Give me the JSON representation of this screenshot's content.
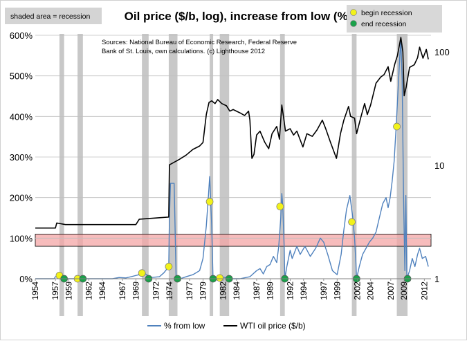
{
  "chart_data": {
    "type": "line",
    "title": "Oil price ($/b, log), increase from low (%)",
    "shaded_label": "shaded area = recession",
    "legend_markers": [
      {
        "label": "begin recession",
        "color": "#f2f21a"
      },
      {
        "label": "end recession",
        "color": "#1aa14a"
      }
    ],
    "source_note": [
      "Sources: National Bureau of Economic Research, Federal Reserve",
      "Bank of St. Louis, own calculations. (c) Lighthouse 2012"
    ],
    "x_ticks": [
      "1954",
      "1957",
      "1959",
      "1962",
      "1964",
      "1967",
      "1969",
      "1972",
      "1974",
      "1977",
      "1979",
      "1982",
      "1984",
      "1987",
      "1989",
      "1992",
      "1994",
      "1997",
      "1999",
      "2002",
      "2004",
      "2007",
      "2009",
      "2012"
    ],
    "x_range": [
      1954,
      2013
    ],
    "y_left": {
      "ticks": [
        "0%",
        "100%",
        "200%",
        "300%",
        "400%",
        "500%",
        "600%"
      ],
      "range": [
        0,
        600
      ]
    },
    "y_right": {
      "ticks": [
        "1",
        "10",
        "100"
      ],
      "range_log": [
        1,
        140
      ],
      "scale": "log"
    },
    "band": {
      "from": 80,
      "to": 110,
      "color": "#f4a6a6"
    },
    "recessions": [
      [
        1957.6,
        1958.3
      ],
      [
        1960.3,
        1961.1
      ],
      [
        1969.9,
        1970.9
      ],
      [
        1973.9,
        1975.2
      ],
      [
        1980.0,
        1980.5
      ],
      [
        1981.5,
        1982.9
      ],
      [
        1990.5,
        1991.2
      ],
      [
        2001.2,
        2001.9
      ],
      [
        2007.9,
        2009.5
      ]
    ],
    "begin_points": [
      {
        "x": 1957.6,
        "y": 8
      },
      {
        "x": 1960.3,
        "y": 0
      },
      {
        "x": 1969.9,
        "y": 14
      },
      {
        "x": 1973.9,
        "y": 30
      },
      {
        "x": 1980.0,
        "y": 190
      },
      {
        "x": 1981.5,
        "y": 2
      },
      {
        "x": 1990.5,
        "y": 178
      },
      {
        "x": 2001.2,
        "y": 140
      },
      {
        "x": 2007.9,
        "y": 375
      }
    ],
    "end_points": [
      {
        "x": 1958.3,
        "y": 0
      },
      {
        "x": 1961.1,
        "y": 0
      },
      {
        "x": 1970.9,
        "y": 0
      },
      {
        "x": 1975.2,
        "y": 0
      },
      {
        "x": 1980.5,
        "y": 0
      },
      {
        "x": 1982.9,
        "y": 0
      },
      {
        "x": 1991.2,
        "y": 0
      },
      {
        "x": 2001.9,
        "y": 0
      },
      {
        "x": 2009.5,
        "y": 0
      }
    ],
    "series": [
      {
        "name": "% from low",
        "color": "#4f81bd",
        "axis": "left",
        "points": [
          [
            1954.0,
            0
          ],
          [
            1956.8,
            0
          ],
          [
            1957.0,
            5
          ],
          [
            1957.4,
            8
          ],
          [
            1957.8,
            2
          ],
          [
            1958.2,
            0
          ],
          [
            1965.5,
            0
          ],
          [
            1966.5,
            3
          ],
          [
            1967.5,
            2
          ],
          [
            1968.5,
            6
          ],
          [
            1969.5,
            10
          ],
          [
            1970.2,
            14
          ],
          [
            1970.8,
            8
          ],
          [
            1971.3,
            3
          ],
          [
            1972.5,
            5
          ],
          [
            1973.2,
            15
          ],
          [
            1973.9,
            30
          ],
          [
            1974.0,
            150
          ],
          [
            1974.15,
            235
          ],
          [
            1974.7,
            235
          ],
          [
            1975.0,
            0
          ],
          [
            1975.6,
            0
          ],
          [
            1976.5,
            5
          ],
          [
            1977.5,
            10
          ],
          [
            1978.5,
            20
          ],
          [
            1979.0,
            50
          ],
          [
            1979.5,
            130
          ],
          [
            1979.8,
            200
          ],
          [
            1980.0,
            252
          ],
          [
            1980.3,
            130
          ],
          [
            1980.5,
            0
          ],
          [
            1981.0,
            0
          ],
          [
            1981.8,
            5
          ],
          [
            1983.0,
            0
          ],
          [
            1984.5,
            0
          ],
          [
            1986.0,
            5
          ],
          [
            1987.0,
            20
          ],
          [
            1987.5,
            25
          ],
          [
            1988.0,
            12
          ],
          [
            1988.5,
            30
          ],
          [
            1989.0,
            35
          ],
          [
            1989.5,
            55
          ],
          [
            1990.0,
            40
          ],
          [
            1990.3,
            80
          ],
          [
            1990.6,
            150
          ],
          [
            1990.75,
            210
          ],
          [
            1990.9,
            180
          ],
          [
            1991.1,
            80
          ],
          [
            1991.2,
            0
          ],
          [
            1991.5,
            30
          ],
          [
            1992.0,
            70
          ],
          [
            1992.3,
            50
          ],
          [
            1993.0,
            80
          ],
          [
            1993.5,
            60
          ],
          [
            1994.2,
            80
          ],
          [
            1995.0,
            55
          ],
          [
            1995.8,
            75
          ],
          [
            1996.5,
            100
          ],
          [
            1997.0,
            90
          ],
          [
            1997.6,
            60
          ],
          [
            1998.3,
            20
          ],
          [
            1999.0,
            10
          ],
          [
            1999.6,
            60
          ],
          [
            2000.0,
            120
          ],
          [
            2000.4,
            170
          ],
          [
            2000.9,
            205
          ],
          [
            2001.3,
            155
          ],
          [
            2001.6,
            100
          ],
          [
            2001.8,
            40
          ],
          [
            2001.9,
            0
          ],
          [
            2002.3,
            30
          ],
          [
            2002.8,
            60
          ],
          [
            2003.3,
            75
          ],
          [
            2003.8,
            90
          ],
          [
            2004.3,
            100
          ],
          [
            2004.8,
            115
          ],
          [
            2005.3,
            150
          ],
          [
            2005.8,
            185
          ],
          [
            2006.3,
            200
          ],
          [
            2006.6,
            175
          ],
          [
            2006.9,
            200
          ],
          [
            2007.2,
            240
          ],
          [
            2007.5,
            290
          ],
          [
            2007.8,
            375
          ],
          [
            2008.1,
            470
          ],
          [
            2008.35,
            550
          ],
          [
            2008.5,
            585
          ],
          [
            2008.7,
            490
          ],
          [
            2008.9,
            200
          ],
          [
            2009.1,
            20
          ],
          [
            2009.25,
            205
          ],
          [
            2009.4,
            0
          ],
          [
            2009.8,
            20
          ],
          [
            2010.2,
            50
          ],
          [
            2010.6,
            30
          ],
          [
            2011.0,
            60
          ],
          [
            2011.3,
            75
          ],
          [
            2011.7,
            50
          ],
          [
            2012.2,
            55
          ],
          [
            2012.6,
            30
          ]
        ]
      },
      {
        "name": "WTI oil price ($/b)",
        "color": "#000000",
        "axis": "right",
        "points": [
          [
            1954.0,
            2.8
          ],
          [
            1957.0,
            2.8
          ],
          [
            1957.2,
            3.1
          ],
          [
            1958.5,
            3.0
          ],
          [
            1969.0,
            3.0
          ],
          [
            1969.5,
            3.35
          ],
          [
            1973.9,
            3.5
          ],
          [
            1974.0,
            10.1
          ],
          [
            1975.5,
            11.3
          ],
          [
            1976.5,
            12.3
          ],
          [
            1977.5,
            13.8
          ],
          [
            1978.5,
            14.8
          ],
          [
            1979.0,
            15.9
          ],
          [
            1979.5,
            28.0
          ],
          [
            1979.9,
            35.8
          ],
          [
            1980.3,
            37.0
          ],
          [
            1980.8,
            35.0
          ],
          [
            1981.2,
            38.0
          ],
          [
            1981.8,
            35.0
          ],
          [
            1982.5,
            33.5
          ],
          [
            1983.0,
            30.0
          ],
          [
            1983.5,
            31.0
          ],
          [
            1984.5,
            29.0
          ],
          [
            1985.2,
            27.5
          ],
          [
            1985.8,
            30.0
          ],
          [
            1986.0,
            25.0
          ],
          [
            1986.3,
            11.5
          ],
          [
            1986.6,
            12.5
          ],
          [
            1987.0,
            18.5
          ],
          [
            1987.5,
            20.0
          ],
          [
            1988.2,
            16.0
          ],
          [
            1988.8,
            14.0
          ],
          [
            1989.3,
            19.0
          ],
          [
            1990.0,
            22.0
          ],
          [
            1990.4,
            17.0
          ],
          [
            1990.75,
            34.0
          ],
          [
            1991.0,
            27.0
          ],
          [
            1991.3,
            20.0
          ],
          [
            1992.0,
            21.0
          ],
          [
            1992.5,
            18.5
          ],
          [
            1993.0,
            20.0
          ],
          [
            1993.9,
            14.5
          ],
          [
            1994.5,
            19.0
          ],
          [
            1995.3,
            18.0
          ],
          [
            1996.0,
            20.5
          ],
          [
            1996.8,
            25.0
          ],
          [
            1997.3,
            21.0
          ],
          [
            1998.0,
            16.0
          ],
          [
            1998.9,
            11.5
          ],
          [
            1999.5,
            19.0
          ],
          [
            2000.0,
            25.0
          ],
          [
            2000.7,
            33.0
          ],
          [
            2001.0,
            27.0
          ],
          [
            2001.6,
            26.0
          ],
          [
            2001.9,
            19.0
          ],
          [
            2002.5,
            26.0
          ],
          [
            2003.1,
            35.0
          ],
          [
            2003.5,
            28.0
          ],
          [
            2004.0,
            34.0
          ],
          [
            2004.8,
            53.0
          ],
          [
            2005.5,
            60.0
          ],
          [
            2006.0,
            63.0
          ],
          [
            2006.6,
            74.0
          ],
          [
            2007.0,
            55.0
          ],
          [
            2007.6,
            78.0
          ],
          [
            2008.0,
            93.0
          ],
          [
            2008.5,
            134.0
          ],
          [
            2008.8,
            100.0
          ],
          [
            2009.0,
            41.0
          ],
          [
            2009.3,
            49.0
          ],
          [
            2009.8,
            73.0
          ],
          [
            2010.5,
            77.0
          ],
          [
            2011.0,
            89.0
          ],
          [
            2011.3,
            110.0
          ],
          [
            2011.8,
            88.0
          ],
          [
            2012.3,
            105.0
          ],
          [
            2012.6,
            86.0
          ]
        ]
      }
    ]
  }
}
